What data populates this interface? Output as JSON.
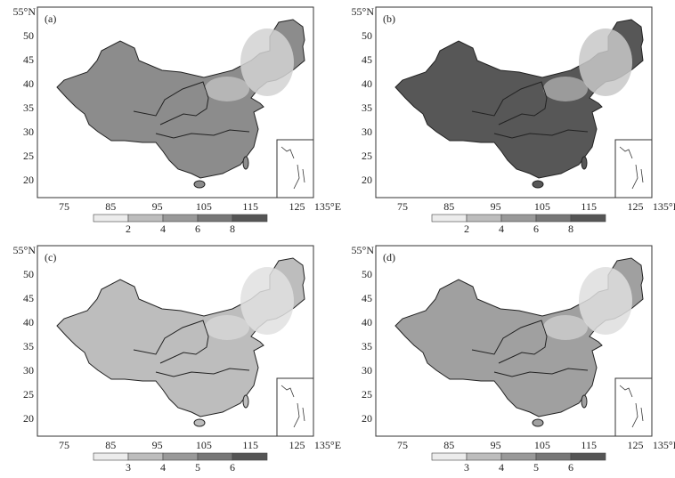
{
  "panels": [
    {
      "label": "(a)",
      "lat_ticks": [
        "55°N",
        "50",
        "45",
        "40",
        "35",
        "30",
        "25",
        "20"
      ],
      "lon_ticks": [
        "75",
        "85",
        "95",
        "105",
        "115",
        "125",
        "135°E"
      ],
      "colorbar_ticks": [
        "2",
        "4",
        "6",
        "8"
      ]
    },
    {
      "label": "(b)",
      "lat_ticks": [
        "55°N",
        "50",
        "45",
        "40",
        "35",
        "30",
        "25",
        "20"
      ],
      "lon_ticks": [
        "75",
        "85",
        "95",
        "105",
        "115",
        "125",
        "135°E"
      ],
      "colorbar_ticks": [
        "2",
        "4",
        "6",
        "8"
      ]
    },
    {
      "label": "(c)",
      "lat_ticks": [
        "55°N",
        "50",
        "45",
        "40",
        "35",
        "30",
        "25",
        "20"
      ],
      "lon_ticks": [
        "75",
        "85",
        "95",
        "105",
        "115",
        "125",
        "135°E"
      ],
      "colorbar_ticks": [
        "3",
        "4",
        "5",
        "6"
      ]
    },
    {
      "label": "(d)",
      "lat_ticks": [
        "55°N",
        "50",
        "45",
        "40",
        "35",
        "30",
        "25",
        "20"
      ],
      "lon_ticks": [
        "75",
        "85",
        "95",
        "105",
        "115",
        "125",
        "135°E"
      ],
      "colorbar_ticks": [
        "3",
        "4",
        "5",
        "6"
      ]
    }
  ]
}
